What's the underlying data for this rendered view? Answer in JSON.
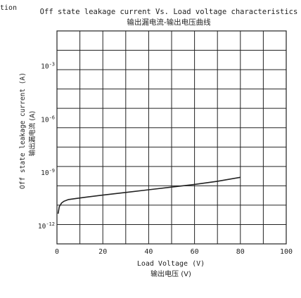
{
  "page": {
    "corner_fragment": "tion"
  },
  "chart_data": {
    "type": "line",
    "title": "Off state leakage current Vs. Load voltage characteristics",
    "subtitle": "输出漏电流-输出电压曲线",
    "xlabel": "Load Voltage (V)",
    "xlabel_cn": "输出电压 (V)",
    "ylabel": "Off state leakage current (A)",
    "ylabel_cn": "输出漏电流 (A)",
    "xlim": [
      0,
      100
    ],
    "x_ticks": [
      0,
      20,
      40,
      60,
      80,
      100
    ],
    "y_scale": "log",
    "y_tick_exponents": [
      -3,
      -6,
      -9,
      -12
    ],
    "ylim_exponent": [
      -13,
      -1
    ],
    "grid": true,
    "series": [
      {
        "x": [
          0.5,
          1,
          2,
          3,
          5,
          8,
          12,
          20,
          30,
          40,
          50,
          60,
          70,
          80
        ],
        "y_log10": [
          -11.3,
          -10.9,
          -10.7,
          -10.6,
          -10.5,
          -10.45,
          -10.38,
          -10.25,
          -10.1,
          -9.95,
          -9.8,
          -9.65,
          -9.47,
          -9.25
        ]
      }
    ],
    "colors": {
      "line": "#222222",
      "grid": "#222222",
      "frame": "#222222"
    }
  }
}
